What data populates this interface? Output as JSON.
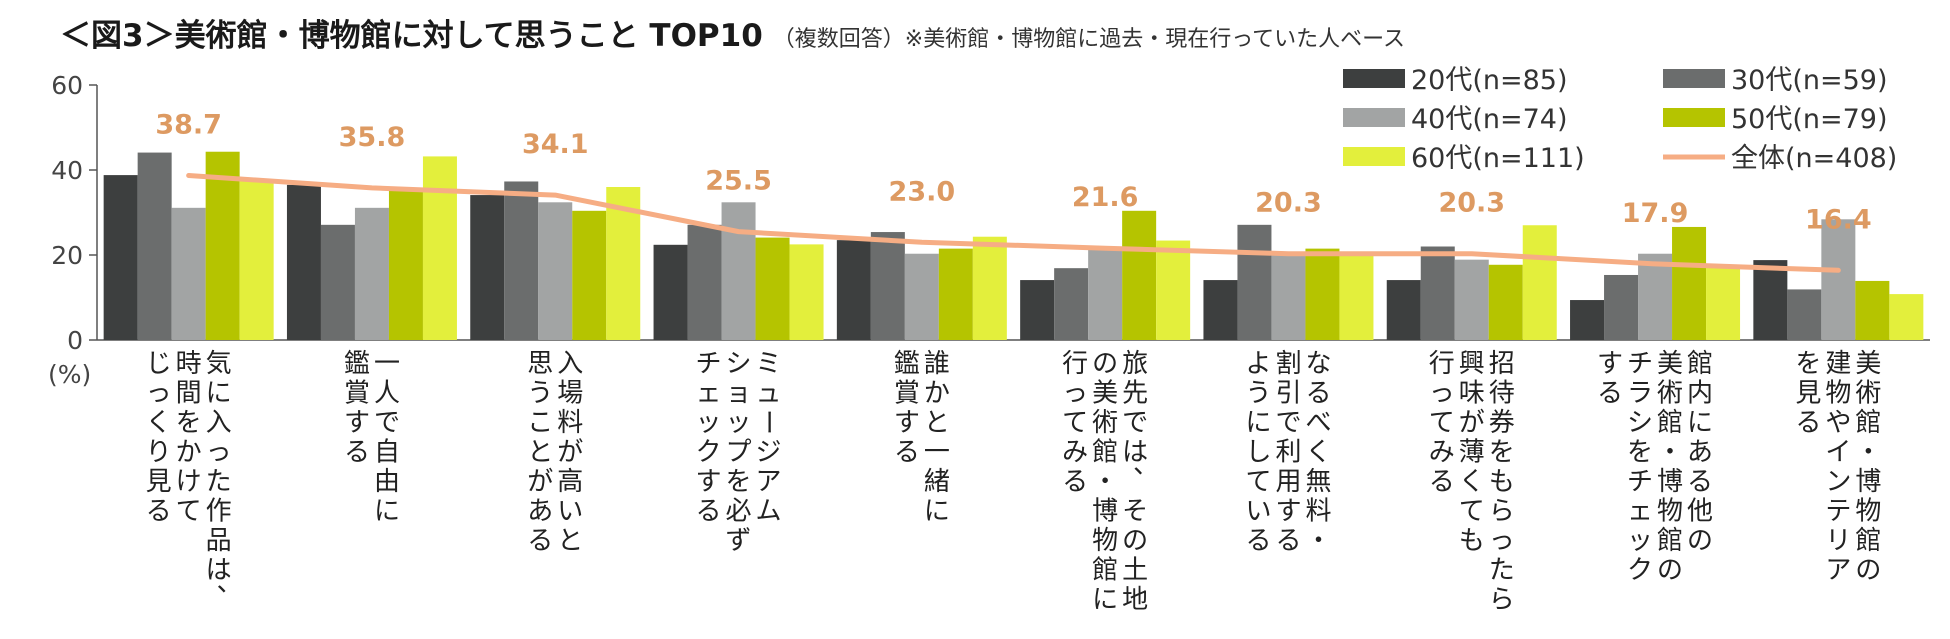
{
  "chart_data": {
    "type": "bar",
    "title": "＜図3＞美術館・博物館に対して思うこと TOP10",
    "subtitle": "（複数回答）※美術館・博物館に過去・現在行っていた人ベース",
    "ylabel": "(%)",
    "ylim": [
      0,
      60
    ],
    "yticks": [
      "0",
      "20",
      "40",
      "60"
    ],
    "categories": [
      "気に入った作品は、時間をかけてじっくり見る",
      "一人で自由に鑑賞する",
      "入場料が高いと思うことがある",
      "ミュージアムショップを必ずチェックする",
      "誰かと一緒に鑑賞する",
      "旅先では、その土地の美術館・博物館に行ってみる",
      "なるべく無料・割引で利用するようにしている",
      "招待券をもらったら興味が薄くても行ってみる",
      "館内にある他の美術館・博物館のチラシをチェックする",
      "美術館・博物館の建物やインテリアを見る"
    ],
    "category_lines": [
      [
        "気に入った作品は、",
        "時間をかけて",
        "じっくり見る"
      ],
      [
        "一人で自由に",
        "鑑賞する"
      ],
      [
        "入場料が高いと",
        "思うことがある"
      ],
      [
        "ミュージアム",
        "ショップを必ず",
        "チェックする"
      ],
      [
        "誰かと一緒に",
        "鑑賞する"
      ],
      [
        "旅先では、その土地",
        "の美術館・博物館に",
        "行ってみる"
      ],
      [
        "なるべく無料・",
        "割引で利用する",
        "ようにしている"
      ],
      [
        "招待券をもらったら",
        "興味が薄くても",
        "行ってみる"
      ],
      [
        "館内にある他の",
        "美術館・博物館の",
        "チラシをチェック",
        "する"
      ],
      [
        "美術館・博物館の",
        "建物やインテリア",
        "を見る"
      ]
    ],
    "series": [
      {
        "name": "20代(n=85)",
        "color": "#3d3f3f",
        "values": [
          38.8,
          36.5,
          34.1,
          22.4,
          23.5,
          14.1,
          14.1,
          14.1,
          9.4,
          18.8
        ]
      },
      {
        "name": "30代(n=59)",
        "color": "#6b6d6d",
        "values": [
          44.1,
          27.1,
          37.3,
          27.1,
          25.4,
          16.9,
          27.1,
          22.0,
          15.3,
          11.9
        ]
      },
      {
        "name": "40代(n=74)",
        "color": "#a2a4a4",
        "values": [
          31.1,
          31.1,
          32.4,
          32.4,
          20.3,
          21.6,
          20.3,
          18.9,
          20.3,
          28.4
        ]
      },
      {
        "name": "50代(n=79)",
        "color": "#b5c400",
        "values": [
          44.3,
          35.4,
          30.4,
          24.1,
          21.5,
          30.4,
          21.5,
          17.7,
          26.6,
          13.9
        ]
      },
      {
        "name": "60代(n=111)",
        "color": "#e3ef3c",
        "values": [
          37.8,
          43.2,
          36.0,
          22.5,
          24.3,
          23.4,
          19.8,
          27.0,
          17.1,
          10.8
        ]
      }
    ],
    "total": {
      "name": "全体(n=408)",
      "color": "#f6ad84",
      "label_color": "#dd9a62",
      "values": [
        38.7,
        35.8,
        34.1,
        25.5,
        23.0,
        21.6,
        20.3,
        20.3,
        17.9,
        16.4
      ],
      "labels": [
        "38.7",
        "35.8",
        "34.1",
        "25.5",
        "23.0",
        "21.6",
        "20.3",
        "20.3",
        "17.9",
        "16.4"
      ]
    }
  }
}
